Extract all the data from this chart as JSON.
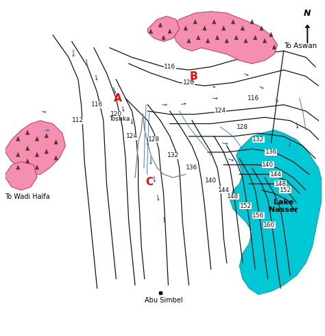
{
  "background_color": "#ffffff",
  "figsize": [
    4.74,
    4.9
  ],
  "dpi": 100,
  "lake_nasser_color": "#00c8d4",
  "lake_nasser_edge": "#0097a7",
  "pink_region_color": "#f48fb1",
  "pink_edge_color": "#c2185b",
  "contour_color": "#111111",
  "flow_arrow_color": "#1a6bc4",
  "label_A": "A",
  "label_B": "B",
  "label_C": "C",
  "text_toshka": "Toshka",
  "text_wadi_halfa": "To Wadi Halfa",
  "text_aswan": "To Aswan",
  "text_lake_nasser": "Lake\nNasser",
  "text_abu_simbel": "Abu Simbel"
}
